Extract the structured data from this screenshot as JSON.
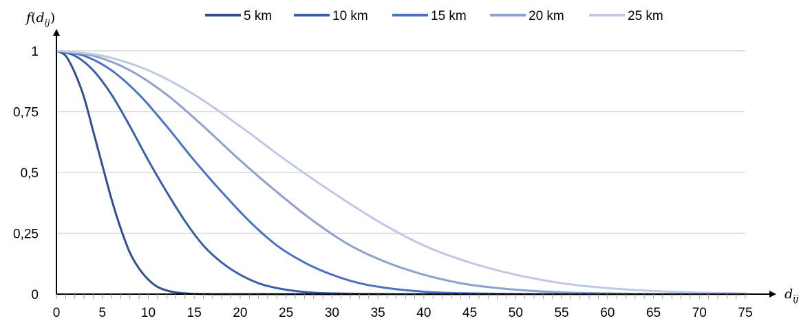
{
  "chart_data": {
    "type": "line",
    "title": "",
    "xlabel": {
      "base": "d",
      "sub": "ij"
    },
    "ylabel": {
      "fn": "f",
      "open": "(",
      "base": "d",
      "sub": "ij",
      "close": ")"
    },
    "xlim": [
      0,
      75
    ],
    "ylim": [
      0,
      1
    ],
    "x_ticks": [
      0,
      5,
      10,
      15,
      20,
      25,
      30,
      35,
      40,
      45,
      50,
      55,
      60,
      65,
      70,
      75
    ],
    "x_tick_labels": [
      "0",
      "5",
      "10",
      "15",
      "20",
      "25",
      "30",
      "35",
      "40",
      "45",
      "50",
      "55",
      "60",
      "65",
      "70",
      "75"
    ],
    "y_ticks": [
      0,
      0.25,
      0.5,
      0.75,
      1
    ],
    "y_tick_labels": [
      "0",
      "0,25",
      "0,5",
      "0,75",
      "1"
    ],
    "grid": "horizontal",
    "legend_position": "top",
    "series": [
      {
        "name": "5 km",
        "color": "#2f4f8f",
        "x": [
          0,
          1,
          2,
          3,
          4,
          5,
          6,
          7,
          8,
          9,
          10,
          11,
          12,
          13,
          14,
          15,
          16,
          18,
          20,
          25,
          30,
          40,
          50,
          60,
          70,
          75
        ],
        "y": [
          1.0,
          0.98,
          0.91,
          0.81,
          0.67,
          0.53,
          0.39,
          0.27,
          0.17,
          0.105,
          0.06,
          0.03,
          0.015,
          0.007,
          0.003,
          0.0015,
          0.0005,
          0.0,
          0.0,
          0.0,
          0.0,
          0.0,
          0.0,
          0.0,
          0.0,
          0.0
        ]
      },
      {
        "name": "10 km",
        "color": "#3a5ea8",
        "x": [
          0,
          2,
          4,
          6,
          8,
          10,
          12,
          14,
          16,
          18,
          20,
          22,
          24,
          26,
          28,
          30,
          35,
          40,
          50,
          60,
          70,
          75
        ],
        "y": [
          1.0,
          0.98,
          0.92,
          0.82,
          0.69,
          0.55,
          0.42,
          0.3,
          0.2,
          0.13,
          0.08,
          0.045,
          0.025,
          0.013,
          0.006,
          0.003,
          0.0005,
          0.0,
          0.0,
          0.0,
          0.0,
          0.0
        ]
      },
      {
        "name": "15 km",
        "color": "#4a72c4",
        "x": [
          0,
          3,
          6,
          9,
          12,
          15,
          18,
          21,
          24,
          27,
          30,
          33,
          36,
          39,
          42,
          45,
          50,
          55,
          60,
          70,
          75
        ],
        "y": [
          1.0,
          0.98,
          0.92,
          0.82,
          0.69,
          0.55,
          0.42,
          0.3,
          0.2,
          0.13,
          0.08,
          0.045,
          0.025,
          0.013,
          0.006,
          0.003,
          0.001,
          0.0,
          0.0,
          0.0,
          0.0
        ]
      },
      {
        "name": "20 km",
        "color": "#8da0d0",
        "x": [
          0,
          4,
          8,
          12,
          16,
          20,
          24,
          28,
          32,
          36,
          40,
          44,
          48,
          52,
          56,
          60,
          65,
          70,
          75
        ],
        "y": [
          1.0,
          0.98,
          0.92,
          0.82,
          0.69,
          0.55,
          0.42,
          0.3,
          0.2,
          0.13,
          0.08,
          0.045,
          0.025,
          0.013,
          0.006,
          0.003,
          0.001,
          0.0,
          0.0
        ]
      },
      {
        "name": "25 km",
        "color": "#bcc8e4",
        "x": [
          0,
          5,
          10,
          15,
          20,
          25,
          30,
          35,
          40,
          45,
          50,
          55,
          60,
          65,
          70,
          75
        ],
        "y": [
          1.0,
          0.98,
          0.92,
          0.82,
          0.69,
          0.55,
          0.42,
          0.3,
          0.2,
          0.13,
          0.08,
          0.045,
          0.025,
          0.013,
          0.006,
          0.003
        ]
      }
    ]
  }
}
